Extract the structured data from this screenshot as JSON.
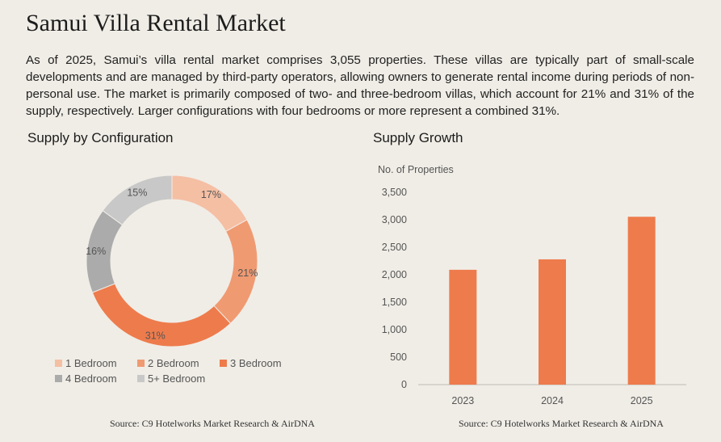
{
  "title": "Samui Villa Rental Market",
  "intro": "As of 2025, Samui’s villa rental market comprises 3,055 properties. These villas are typically part of small-scale developments and are managed by third-party operators, allowing owners to generate rental income during periods of non-personal use. The market is primarily composed of two- and three-bedroom villas, which account for 21% and 31% of the supply, respectively. Larger configurations with four bedrooms or more represent a combined 31%.",
  "colors": {
    "background": "#f0ede6",
    "bar": "#ee7b4c",
    "1_bedroom": "#f5bfa4",
    "2_bedroom": "#f09a72",
    "3_bedroom": "#ee7b4c",
    "4_bedroom": "#ababab",
    "5_bedroom": "#c8c8c8"
  },
  "chart_data": [
    {
      "type": "pie",
      "title": "Supply by Configuration",
      "categories": [
        "1 Bedroom",
        "2 Bedroom",
        "3 Bedroom",
        "4 Bedroom",
        "5+ Bedroom"
      ],
      "values": [
        17,
        21,
        31,
        16,
        15
      ],
      "value_labels": [
        "17%",
        "21%",
        "31%",
        "16%",
        "15%"
      ],
      "donut": true,
      "legend_position": "bottom",
      "source": "Source: C9 Hotelworks Market Research & AirDNA"
    },
    {
      "type": "bar",
      "title": "Supply Growth",
      "ylabel": "No. of Properties",
      "categories": [
        "2023",
        "2024",
        "2025"
      ],
      "values": [
        2090,
        2280,
        3055
      ],
      "ylim": [
        0,
        3500
      ],
      "yticks": [
        0,
        500,
        1000,
        1500,
        2000,
        2500,
        3000,
        3500
      ],
      "ytick_labels": [
        "0",
        "500",
        "1,000",
        "1,500",
        "2,000",
        "2,500",
        "3,000",
        "3,500"
      ],
      "grid": false,
      "source": "Source: C9 Hotelworks Market Research & AirDNA"
    }
  ]
}
